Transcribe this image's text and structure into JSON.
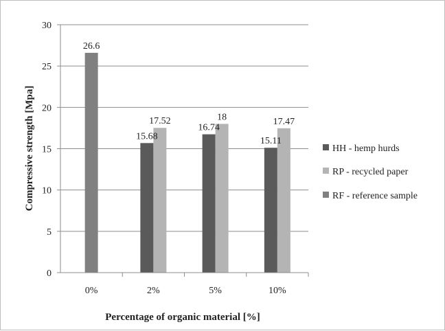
{
  "chart_data": {
    "type": "bar",
    "xlabel": "Percentage of organic material [%]",
    "ylabel": "Compressive strength [Mpa]",
    "ylim": [
      0,
      30
    ],
    "yticks": [
      "0",
      "5",
      "10",
      "15",
      "20",
      "25",
      "30"
    ],
    "grid": "horizontal",
    "legend_position": "right",
    "categories": [
      "0%",
      "2%",
      "5%",
      "10%"
    ],
    "series": [
      {
        "name": "HH - hemp hurds",
        "color": "#5a5a5a",
        "values": [
          null,
          15.68,
          16.74,
          15.11
        ],
        "labels": [
          "",
          "15.68",
          "16.74",
          "15.11"
        ]
      },
      {
        "name": "RP - recycled paper",
        "color": "#b4b4b4",
        "values": [
          null,
          17.52,
          18,
          17.47
        ],
        "labels": [
          "",
          "17.52",
          "18",
          "17.47"
        ]
      },
      {
        "name": "RF - reference sample",
        "color": "#808080",
        "values": [
          26.6,
          null,
          null,
          null
        ],
        "labels": [
          "26.6",
          "",
          "",
          ""
        ]
      }
    ]
  }
}
